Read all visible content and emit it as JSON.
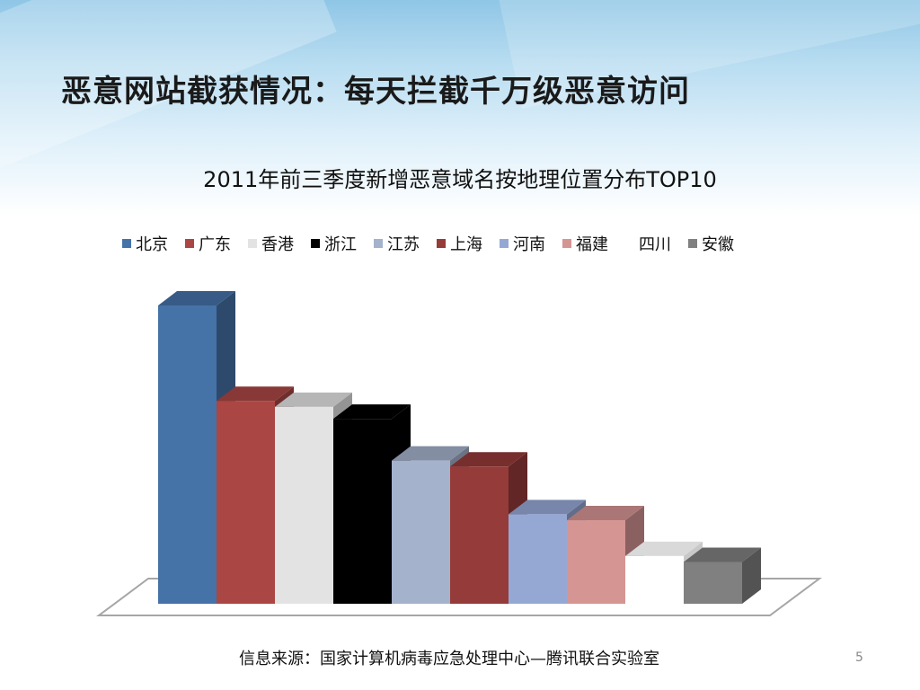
{
  "slide": {
    "title": "恶意网站截获情况：每天拦截千万级恶意访问",
    "source": "信息来源：国家计算机病毒应急处理中心—腾讯联合实验室",
    "page_number": "5"
  },
  "chart_data": {
    "type": "bar",
    "title": "2011年前三季度新增恶意域名按地理位置分布TOP10",
    "categories": [
      "北京",
      "广东",
      "香港",
      "浙江",
      "江苏",
      "上海",
      "河南",
      "福建",
      "四川",
      "安徽"
    ],
    "values": [
      100,
      68,
      66,
      62,
      48,
      46,
      30,
      28,
      16,
      14
    ],
    "colors": [
      "#4572a7",
      "#aa4643",
      "#e3e3e3",
      "#000000",
      "#a4b2cc",
      "#953b39",
      "#95a8d4",
      "#d59593",
      "#ffffff",
      "#808080"
    ],
    "legend_placement": "top",
    "style": "3d-clustered-column",
    "xlabel": "",
    "ylabel": "",
    "ylim": [
      0,
      100
    ],
    "grid": false,
    "axis_tick_labels": false
  }
}
